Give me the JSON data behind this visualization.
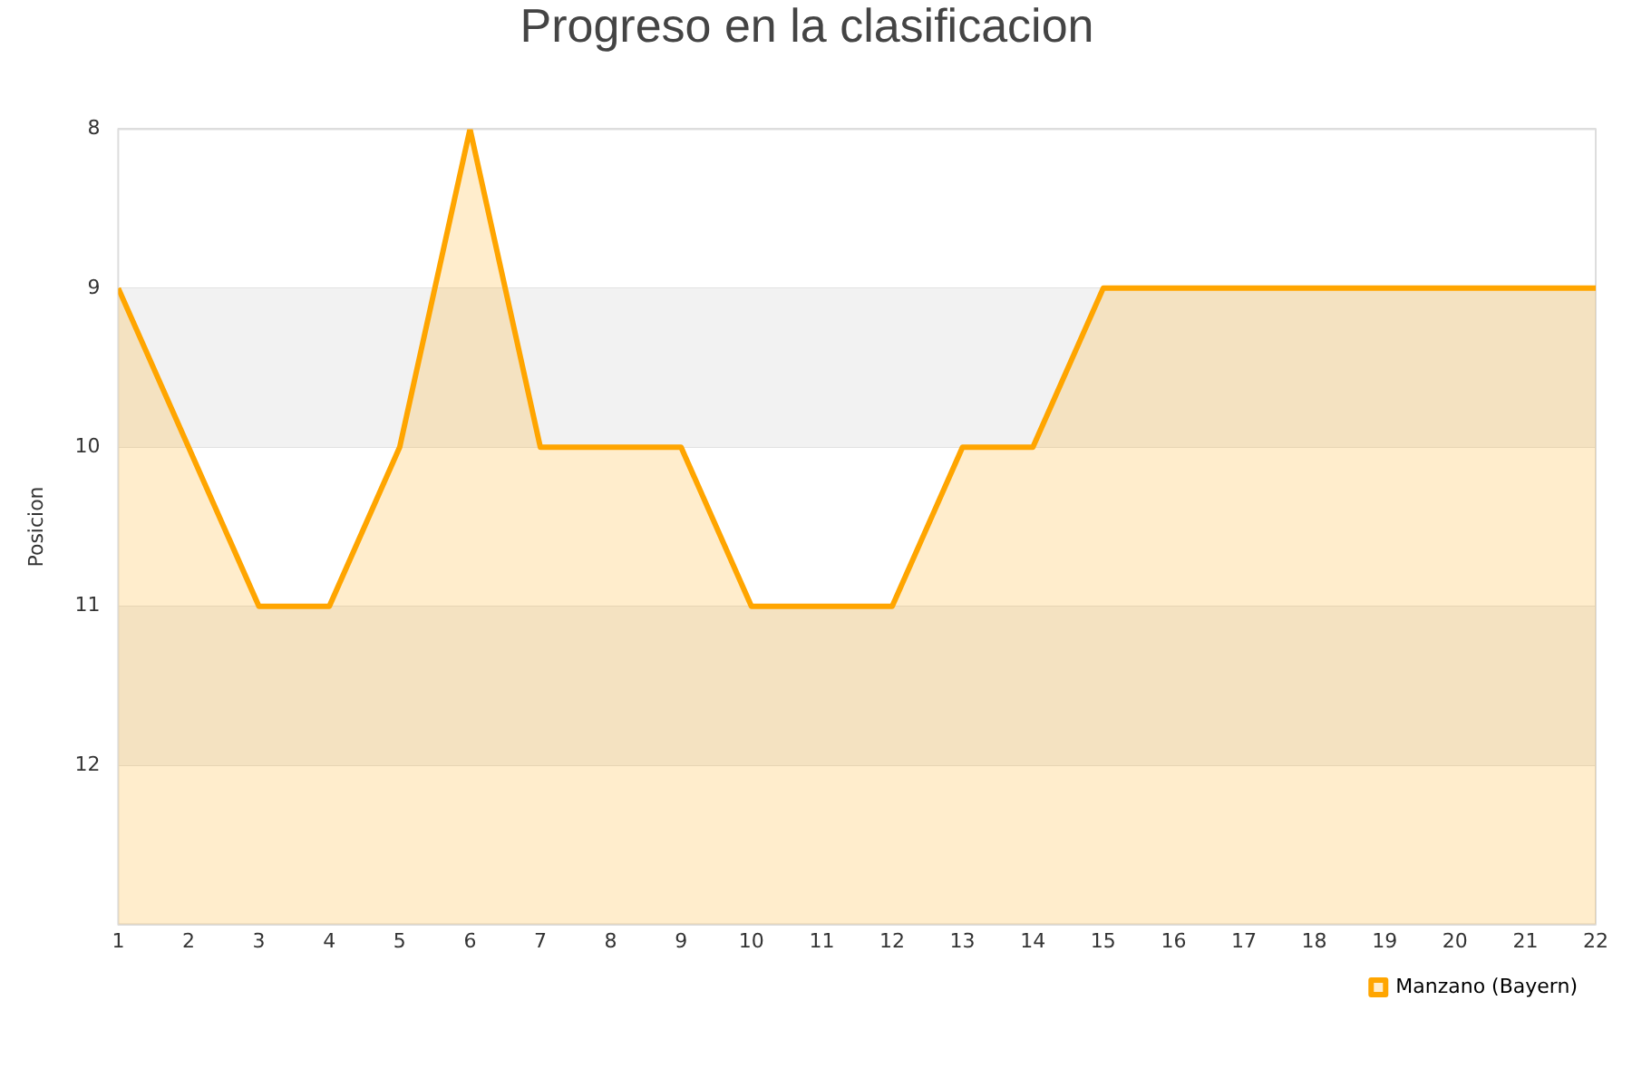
{
  "chart_data": {
    "type": "area",
    "title": "Progreso en la clasificacion",
    "ylabel": "Posicion",
    "x": [
      1,
      2,
      3,
      4,
      5,
      6,
      7,
      8,
      9,
      10,
      11,
      12,
      13,
      14,
      15,
      16,
      17,
      18,
      19,
      20,
      21,
      22
    ],
    "series": [
      {
        "name": "Manzano (Bayern)",
        "color": "#ffa500",
        "values": [
          9,
          10,
          11,
          11,
          10,
          8,
          10,
          10,
          10,
          11,
          11,
          11,
          10,
          10,
          9,
          9,
          9,
          9,
          9,
          9,
          9,
          9
        ]
      }
    ],
    "xlim": [
      1,
      22
    ],
    "xticks": [
      1,
      2,
      3,
      4,
      5,
      6,
      7,
      8,
      9,
      10,
      11,
      12,
      13,
      14,
      15,
      16,
      17,
      18,
      19,
      20,
      21,
      22
    ],
    "ylim": [
      13,
      8
    ],
    "yticks": [
      8,
      9,
      10,
      11,
      12,
      {
        "value": 13,
        "label": null
      }
    ],
    "bands": [
      {
        "axis": "y",
        "from": 9,
        "to": 10,
        "color": "#f2f2f2"
      },
      {
        "axis": "y",
        "from": 11,
        "to": 12,
        "color": "#f2f2f2"
      }
    ],
    "grid": "y",
    "legend": "bottom right",
    "marker": "none",
    "line_style": "solid"
  }
}
